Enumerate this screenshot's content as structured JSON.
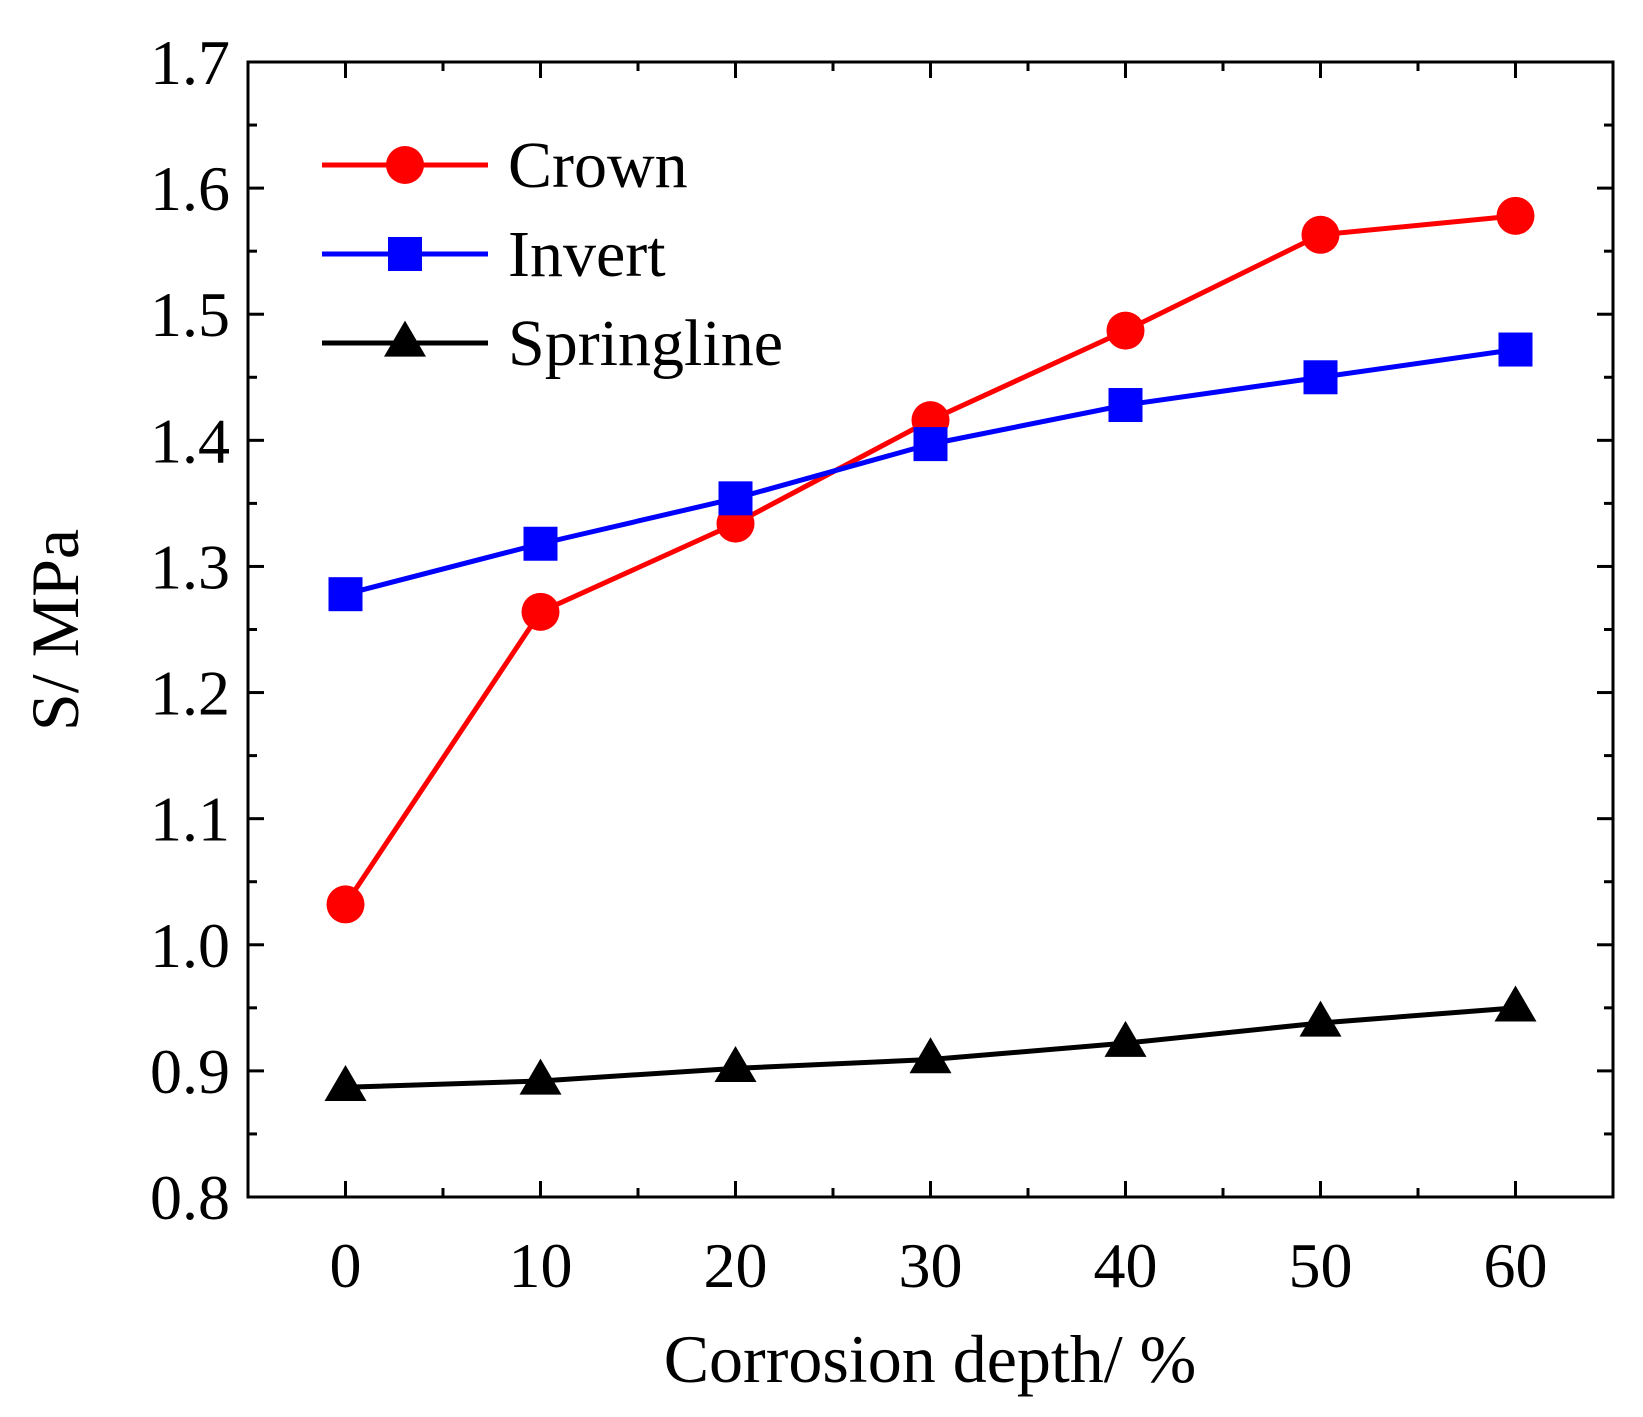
{
  "chart_data": {
    "type": "line",
    "title": "",
    "xlabel": "Corrosion depth/ %",
    "ylabel": "S/ MPa",
    "x": [
      0,
      10,
      20,
      30,
      40,
      50,
      60
    ],
    "xlim": [
      -5,
      65
    ],
    "ylim": [
      0.8,
      1.7
    ],
    "xticks": [
      "0",
      "10",
      "20",
      "30",
      "40",
      "50",
      "60"
    ],
    "yticks": [
      "0.8",
      "0.9",
      "1.0",
      "1.1",
      "1.2",
      "1.3",
      "1.4",
      "1.5",
      "1.6",
      "1.7"
    ],
    "grid": false,
    "legend_position": "top-left",
    "series": [
      {
        "name": "Crown",
        "color": "#ff0000",
        "marker": "circle",
        "values": [
          1.032,
          1.264,
          1.334,
          1.416,
          1.487,
          1.563,
          1.578
        ]
      },
      {
        "name": "Invert",
        "color": "#0000ff",
        "marker": "square",
        "values": [
          1.278,
          1.318,
          1.354,
          1.397,
          1.428,
          1.45,
          1.472
        ]
      },
      {
        "name": "Springline",
        "color": "#000000",
        "marker": "triangle",
        "values": [
          0.887,
          0.892,
          0.902,
          0.909,
          0.922,
          0.938,
          0.95
        ]
      }
    ]
  }
}
